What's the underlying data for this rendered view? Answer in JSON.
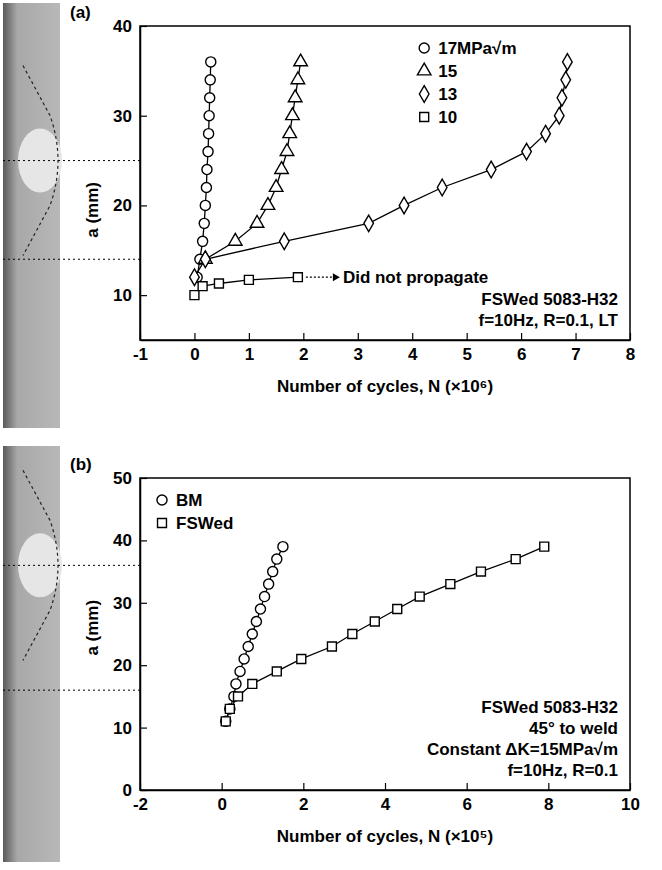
{
  "chart_data": [
    {
      "type": "line",
      "panel_label": "(a)",
      "xlabel": "Number of cycles, N (×10⁶)",
      "ylabel": "a (mm)",
      "xlim": [
        -1,
        8
      ],
      "xticks": [
        -1,
        0,
        1,
        2,
        3,
        4,
        5,
        6,
        7,
        8
      ],
      "ylim": [
        5,
        40
      ],
      "yticks": [
        10,
        20,
        30,
        40
      ],
      "legend": "upper right",
      "reference_lines": [
        14,
        25
      ],
      "annotations": [
        "FSWed 5083-H32",
        "f=10Hz, R=0.1, LT"
      ],
      "series": [
        {
          "name": "17MPa√m",
          "color": "#000000",
          "marker": "circle",
          "x": [
            0.05,
            0.1,
            0.15,
            0.18,
            0.2,
            0.22,
            0.23,
            0.25,
            0.26,
            0.27,
            0.28,
            0.29,
            0.3
          ],
          "values": [
            12,
            14,
            16,
            18,
            20,
            22,
            24,
            26,
            28,
            30,
            32,
            34,
            36
          ]
        },
        {
          "name": "15",
          "color": "#000000",
          "marker": "triangle",
          "x": [
            0.2,
            0.75,
            1.15,
            1.35,
            1.5,
            1.6,
            1.7,
            1.75,
            1.8,
            1.85,
            1.9,
            1.95
          ],
          "values": [
            14,
            16,
            18,
            20,
            22,
            24,
            26,
            28,
            30,
            32,
            34,
            36
          ]
        },
        {
          "name": "13",
          "color": "#000000",
          "marker": "diamond",
          "x": [
            0,
            0.2,
            1.65,
            3.2,
            3.85,
            4.55,
            5.45,
            6.1,
            6.45,
            6.7,
            6.75,
            6.82,
            6.85
          ],
          "values": [
            12,
            14,
            16,
            18,
            20,
            22,
            24,
            26,
            28,
            30,
            32,
            34,
            36
          ]
        },
        {
          "name": "10",
          "color": "#000000",
          "marker": "square",
          "annotation": "Did not propagate",
          "x": [
            0,
            0.15,
            0.45,
            1,
            1.9
          ],
          "values": [
            10,
            11,
            11.3,
            11.7,
            12
          ]
        }
      ]
    },
    {
      "type": "line",
      "panel_label": "(b)",
      "xlabel": "Number of cycles, N (×10⁵)",
      "ylabel": "a (mm)",
      "xlim": [
        -2,
        10
      ],
      "xticks": [
        -2,
        0,
        2,
        4,
        6,
        8,
        10
      ],
      "ylim": [
        0,
        50
      ],
      "yticks": [
        0,
        10,
        20,
        30,
        40,
        50
      ],
      "legend": "upper left",
      "reference_lines": [
        16,
        36
      ],
      "annotations": [
        "FSWed 5083-H32",
        "45° to weld",
        "Constant ΔK=15MPa√m",
        "f=10Hz, R=0.1"
      ],
      "series": [
        {
          "name": "BM",
          "color": "#000000",
          "marker": "circle",
          "x": [
            0.1,
            0.2,
            0.3,
            0.35,
            0.45,
            0.55,
            0.65,
            0.75,
            0.85,
            0.95,
            1.05,
            1.15,
            1.25,
            1.35,
            1.5
          ],
          "values": [
            11,
            13,
            15,
            17,
            19,
            21,
            23,
            25,
            27,
            29,
            31,
            33,
            35,
            37,
            39
          ]
        },
        {
          "name": "FSWed",
          "color": "#000000",
          "marker": "square",
          "x": [
            0.1,
            0.2,
            0.4,
            0.75,
            1.35,
            1.95,
            2.7,
            3.2,
            3.75,
            4.3,
            4.85,
            5.6,
            6.35,
            7.2,
            7.9
          ],
          "values": [
            11,
            13,
            15,
            17,
            19,
            21,
            23,
            25,
            27,
            29,
            31,
            33,
            35,
            37,
            39
          ]
        }
      ]
    }
  ]
}
